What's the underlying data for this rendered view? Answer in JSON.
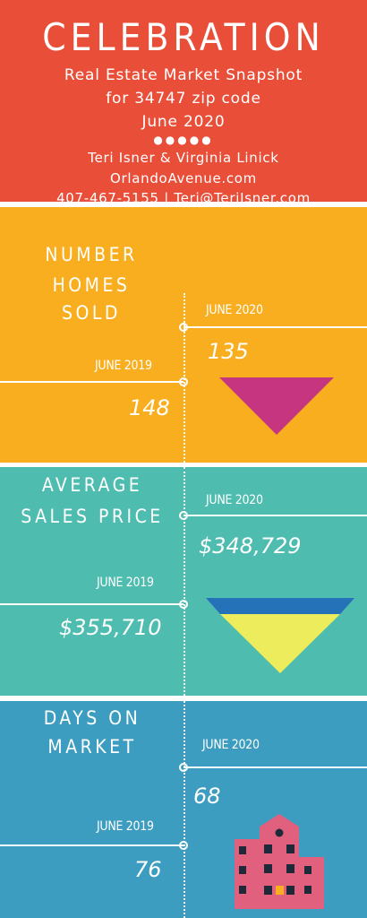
{
  "header": {
    "title": "CELEBRATION",
    "subtitle_line1": "Real Estate Market Snapshot",
    "subtitle_line2": "for 34747 zip code",
    "subtitle_line3": "June 2020",
    "agents": "Teri Isner & Virginia Linick",
    "website": "OrlandoAvenue.com",
    "phone_email": "407-467-5155 | Teri@TeriIsner.com"
  },
  "sections": [
    {
      "title_line1": "NUMBER",
      "title_line2": "HOMES SOLD",
      "current_period": "JUNE 2020",
      "current_value": "135",
      "prior_period": "JUNE 2019",
      "prior_value": "148"
    },
    {
      "title_line1": "AVERAGE",
      "title_line2": "SALES PRICE",
      "current_period": "JUNE 2020",
      "current_value": "$348,729",
      "prior_period": "JUNE 2019",
      "prior_value": "$355,710"
    },
    {
      "title_line1": "DAYS ON",
      "title_line2": "MARKET",
      "current_period": "JUNE 2020",
      "current_value": "68",
      "prior_period": "JUNE 2019",
      "prior_value": "76"
    }
  ],
  "colors": {
    "header_bg": "#E94E39",
    "homes_sold_bg": "#F8AE1E",
    "sales_price_bg": "#4EBDAF",
    "days_market_bg": "#3C9DC0",
    "down_arrow_magenta": "#C63580",
    "down_arrow_blue": "#2672B8",
    "down_arrow_yellow": "#EDEC5D",
    "building_pink": "#E0607E"
  },
  "icons": [
    "down-triangle-icon",
    "funnel-down-icon",
    "building-icon"
  ]
}
